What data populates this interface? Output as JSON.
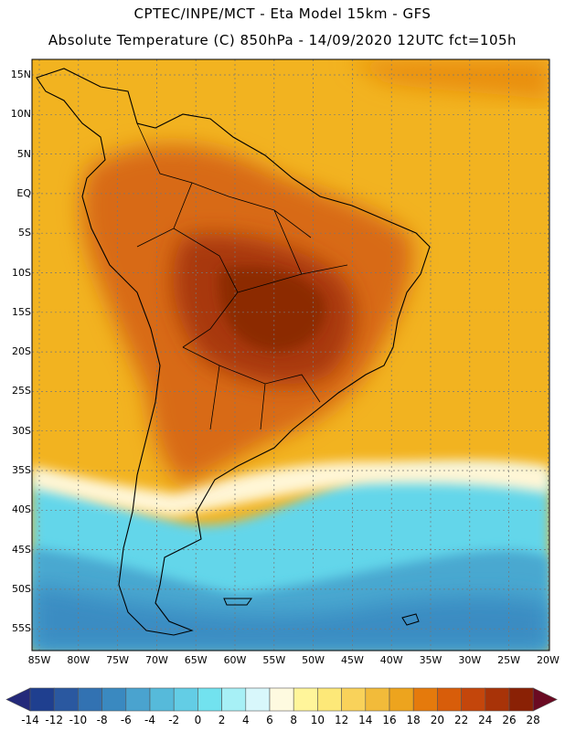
{
  "header": {
    "line1": "CPTEC/INPE/MCT -  Eta Model 15km - GFS",
    "line2": "Absolute Temperature (C) 850hPa - 14/09/2020 12UTC fct=105h"
  },
  "map": {
    "lat_labels": [
      "15N",
      "10N",
      "5N",
      "EQ",
      "5S",
      "10S",
      "15S",
      "20S",
      "25S",
      "30S",
      "35S",
      "40S",
      "45S",
      "50S",
      "55S"
    ],
    "lon_labels": [
      "85W",
      "80W",
      "75W",
      "70W",
      "65W",
      "60W",
      "55W",
      "50W",
      "45W",
      "40W",
      "35W",
      "30W",
      "25W",
      "20W"
    ]
  },
  "colorbar": {
    "labels": [
      "-14",
      "-12",
      "-10",
      "-8",
      "-6",
      "-4",
      "-2",
      "0",
      "2",
      "4",
      "6",
      "8",
      "10",
      "12",
      "14",
      "16",
      "18",
      "20",
      "22",
      "24",
      "26",
      "28"
    ],
    "colors": [
      "#1f3f8f",
      "#2a58a0",
      "#3272b2",
      "#3a89c0",
      "#4aa3cf",
      "#56bada",
      "#63cde5",
      "#72e2ef",
      "#a7f0f6",
      "#d8f7fb",
      "#fefae0",
      "#fff59a",
      "#fde878",
      "#f9d25a",
      "#f2bb3a",
      "#eda41e",
      "#e57a0c",
      "#d85d0a",
      "#c4460b",
      "#a83308",
      "#8a2105",
      "#6e1304"
    ],
    "end_colors": {
      "low": "#24297a",
      "high": "#6a0a22"
    }
  }
}
